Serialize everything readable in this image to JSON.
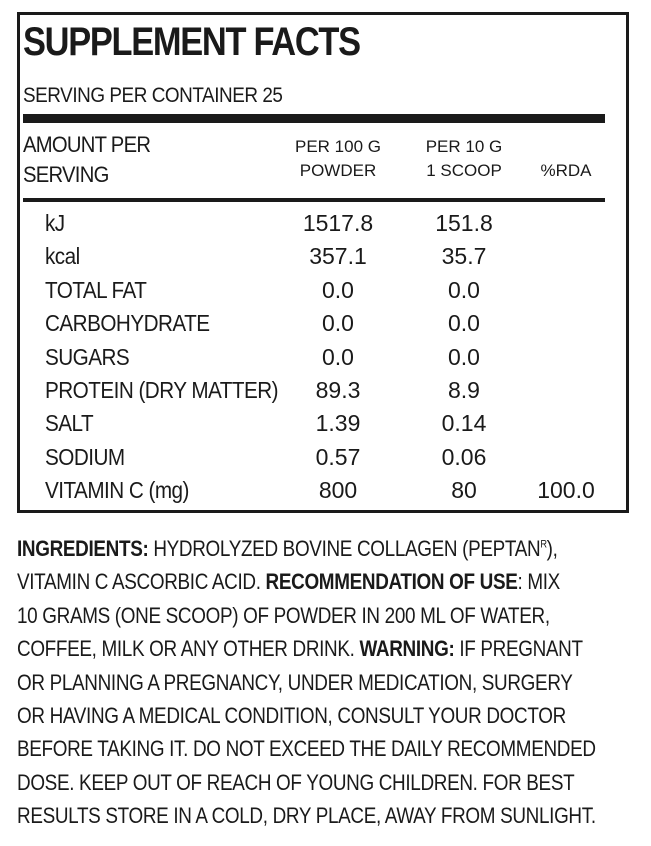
{
  "facts": {
    "title": "SUPPLEMENT FACTS",
    "servings": "SERVING PER CONTAINER 25",
    "header": {
      "amount": "AMOUNT PER\nSERVING",
      "col1": "PER 100 G\nPOWDER",
      "col2": "PER 10 G\n1 SCOOP",
      "col3": "%RDA"
    },
    "rows": [
      {
        "name": "kJ",
        "per100": "1517.8",
        "per10": "151.8",
        "rda": ""
      },
      {
        "name": "kcal",
        "per100": "357.1",
        "per10": "35.7",
        "rda": ""
      },
      {
        "name": "TOTAL FAT",
        "per100": "0.0",
        "per10": "0.0",
        "rda": ""
      },
      {
        "name": "CARBOHYDRATE",
        "per100": "0.0",
        "per10": "0.0",
        "rda": ""
      },
      {
        "name": "SUGARS",
        "per100": "0.0",
        "per10": "0.0",
        "rda": ""
      },
      {
        "name": "PROTEIN (DRY MATTER)",
        "per100": "89.3",
        "per10": "8.9",
        "rda": ""
      },
      {
        "name": "SALT",
        "per100": "1.39",
        "per10": "0.14",
        "rda": ""
      },
      {
        "name": "SODIUM",
        "per100": "0.57",
        "per10": "0.06",
        "rda": ""
      },
      {
        "name": "VITAMIN C (mg)",
        "per100": "800",
        "per10": "80",
        "rda": "100.0"
      }
    ]
  },
  "text": {
    "ingredients_label": "INGREDIENTS:",
    "line1": " HYDROLYZED BOVINE COLLAGEN (PEPTAN",
    "trademark": "R",
    "line1_end": "),",
    "line2a": "VITAMIN C ASCORBIC ACID. ",
    "recommendation_label": "RECOMMENDATION OF USE",
    "line2b": ": MIX",
    "line3": "10 GRAMS (ONE SCOOP) OF POWDER IN 200 ML OF WATER,",
    "line4a": "COFFEE,  MILK OR ANY OTHER DRINK. ",
    "warning_label": "WARNING:",
    "line4b": " IF PREGNANT",
    "line5": "OR PLANNING A PREGNANCY, UNDER MEDICATION, SURGERY",
    "line6": "OR HAVING A MEDICAL CONDITION,  CONSULT YOUR DOCTOR",
    "line7": "BEFORE TAKING IT. DO NOT EXCEED THE DAILY RECOMMENDED",
    "line8": "DOSE. KEEP OUT OF REACH OF YOUNG CHILDREN. FOR BEST",
    "line9": "RESULTS STORE IN A COLD, DRY PLACE, AWAY FROM SUNLIGHT."
  }
}
